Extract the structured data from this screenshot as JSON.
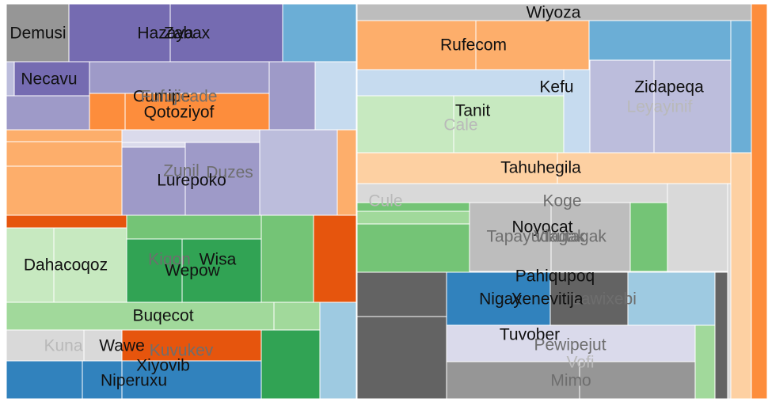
{
  "chart_data": {
    "type": "treemap",
    "title": "",
    "palette": {
      "blue": [
        "#3182bd",
        "#6baed6",
        "#9ecae1",
        "#c6dbef"
      ],
      "orange": [
        "#e6550d",
        "#fd8d3c",
        "#fdae6b",
        "#fdd0a2"
      ],
      "green": [
        "#31a354",
        "#74c476",
        "#a1d99b",
        "#c7e9c0"
      ],
      "purple": [
        "#756bb1",
        "#9e9ac8",
        "#bcbddc",
        "#dadaeb"
      ],
      "grey": [
        "#636363",
        "#969696",
        "#bdbdbd",
        "#d9d9d9"
      ]
    },
    "labels": [
      {
        "text": "Demusi",
        "tone": "dark"
      },
      {
        "text": "Hazaya",
        "tone": "dark"
      },
      {
        "text": "Zabax",
        "tone": "dark"
      },
      {
        "text": "Necavu",
        "tone": "dark"
      },
      {
        "text": "Cumipe",
        "tone": "dark"
      },
      {
        "text": "Fufujicade",
        "tone": "muted"
      },
      {
        "text": "Qotoziyof",
        "tone": "dark"
      },
      {
        "text": "Zunil",
        "tone": "muted"
      },
      {
        "text": "Duzes",
        "tone": "muted"
      },
      {
        "text": "Lurepoko",
        "tone": "dark"
      },
      {
        "text": "Dahacoqoz",
        "tone": "dark"
      },
      {
        "text": "Kiqon",
        "tone": "muted"
      },
      {
        "text": "Wisa",
        "tone": "dark"
      },
      {
        "text": "Wepow",
        "tone": "dark"
      },
      {
        "text": "Buqecot",
        "tone": "dark"
      },
      {
        "text": "Kuna",
        "tone": "light"
      },
      {
        "text": "Wawe",
        "tone": "dark"
      },
      {
        "text": "Kuvukev",
        "tone": "muted"
      },
      {
        "text": "Xiyovib",
        "tone": "dark"
      },
      {
        "text": "Niperuxu",
        "tone": "dark"
      },
      {
        "text": "Wiyoza",
        "tone": "dark"
      },
      {
        "text": "Rufecom",
        "tone": "dark"
      },
      {
        "text": "Kefu",
        "tone": "dark"
      },
      {
        "text": "Zidapeqa",
        "tone": "dark"
      },
      {
        "text": "Leyayinif",
        "tone": "light"
      },
      {
        "text": "Tanit",
        "tone": "dark"
      },
      {
        "text": "Cale",
        "tone": "light"
      },
      {
        "text": "Tahuhegila",
        "tone": "dark"
      },
      {
        "text": "Cule",
        "tone": "light"
      },
      {
        "text": "Koge",
        "tone": "muted"
      },
      {
        "text": "Noyocat",
        "tone": "dark"
      },
      {
        "text": "Tapayudagak",
        "tone": "muted"
      },
      {
        "text": "Vikutagak",
        "tone": "muted"
      },
      {
        "text": "Pahiqupoq",
        "tone": "dark"
      },
      {
        "text": "Nigay",
        "tone": "dark"
      },
      {
        "text": "Xenevitija",
        "tone": "dark"
      },
      {
        "text": "Lawixebi",
        "tone": "muted"
      },
      {
        "text": "Tuvober",
        "tone": "dark"
      },
      {
        "text": "Pewipejut",
        "tone": "muted"
      },
      {
        "text": "Vofi",
        "tone": "light"
      },
      {
        "text": "Mimo",
        "tone": "muted"
      }
    ]
  }
}
